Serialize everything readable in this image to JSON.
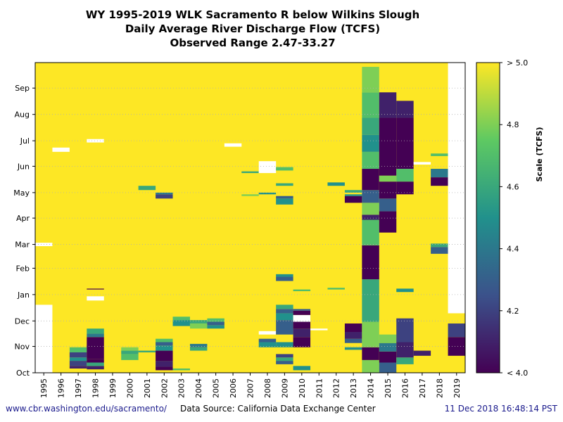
{
  "titles": {
    "line1": "WY 1995-2019 WLK Sacramento R below Wilkins Slough",
    "line2": "Daily Average River Discharge Flow (TCFS)",
    "line3": "Observed Range 2.47-33.27"
  },
  "footer": {
    "url": "www.cbr.washington.edu/sacramento/",
    "source": "Data Source: California Data Exchange Center",
    "timestamp": "11 Dec 2018 16:48:14 PST"
  },
  "chart_data": {
    "type": "heatmap",
    "title": "WY 1995-2019 WLK Sacramento R below Wilkins Slough",
    "years": [
      1995,
      1996,
      1997,
      1998,
      1999,
      2000,
      2001,
      2002,
      2003,
      2004,
      2005,
      2006,
      2007,
      2008,
      2009,
      2010,
      2011,
      2012,
      2013,
      2014,
      2015,
      2016,
      2017,
      2018,
      2019
    ],
    "months": [
      "Oct",
      "Nov",
      "Dec",
      "Jan",
      "Feb",
      "Mar",
      "Apr",
      "May",
      "Jun",
      "Jul",
      "Aug",
      "Sep"
    ],
    "colorbar": {
      "label": "Scale (TCFS)",
      "min": 4.0,
      "max": 5.0,
      "ticks": [
        {
          "value": 5.0,
          "label": "> 5.0"
        },
        {
          "value": 4.8,
          "label": "4.8"
        },
        {
          "value": 4.6,
          "label": "4.6"
        },
        {
          "value": 4.4,
          "label": "4.4"
        },
        {
          "value": 4.2,
          "label": "4.2"
        },
        {
          "value": 4.0,
          "label": "< 4.0"
        }
      ],
      "colors": [
        "#440154",
        "#3b528b",
        "#21918c",
        "#5ec962",
        "#fde725"
      ]
    },
    "background_value": 5.0,
    "segments": [
      {
        "year": 1995,
        "start": 0,
        "end": 80,
        "value": null
      },
      {
        "year": 1995,
        "start": 149,
        "end": 153,
        "value": null
      },
      {
        "year": 1996,
        "start": 260,
        "end": 265,
        "value": null
      },
      {
        "year": 1997,
        "start": 5,
        "end": 8,
        "value": 4.1
      },
      {
        "year": 1997,
        "start": 8,
        "end": 14,
        "value": 4.2
      },
      {
        "year": 1997,
        "start": 14,
        "end": 18,
        "value": 4.5
      },
      {
        "year": 1997,
        "start": 18,
        "end": 24,
        "value": 4.2
      },
      {
        "year": 1997,
        "start": 24,
        "end": 30,
        "value": 4.7
      },
      {
        "year": 1998,
        "start": 4,
        "end": 8,
        "value": 4.1
      },
      {
        "year": 1998,
        "start": 8,
        "end": 12,
        "value": 4.6
      },
      {
        "year": 1998,
        "start": 12,
        "end": 16,
        "value": 4.0
      },
      {
        "year": 1998,
        "start": 16,
        "end": 42,
        "value": 4.0
      },
      {
        "year": 1998,
        "start": 42,
        "end": 46,
        "value": 4.4
      },
      {
        "year": 1998,
        "start": 46,
        "end": 52,
        "value": 4.6
      },
      {
        "year": 1998,
        "start": 85,
        "end": 90,
        "value": null
      },
      {
        "year": 1998,
        "start": 98,
        "end": 99,
        "value": 4.0
      },
      {
        "year": 1998,
        "start": 271,
        "end": 275,
        "value": null
      },
      {
        "year": 2000,
        "start": 15,
        "end": 22,
        "value": 4.7
      },
      {
        "year": 2000,
        "start": 22,
        "end": 26,
        "value": 4.6
      },
      {
        "year": 2000,
        "start": 26,
        "end": 30,
        "value": 4.8
      },
      {
        "year": 2001,
        "start": 24,
        "end": 26,
        "value": 4.6
      },
      {
        "year": 2001,
        "start": 215,
        "end": 220,
        "value": 4.6
      },
      {
        "year": 2002,
        "start": 3,
        "end": 7,
        "value": 4.0
      },
      {
        "year": 2002,
        "start": 7,
        "end": 14,
        "value": 4.1
      },
      {
        "year": 2002,
        "start": 14,
        "end": 26,
        "value": 4.0
      },
      {
        "year": 2002,
        "start": 26,
        "end": 32,
        "value": 4.5
      },
      {
        "year": 2002,
        "start": 32,
        "end": 36,
        "value": 4.3
      },
      {
        "year": 2002,
        "start": 36,
        "end": 40,
        "value": 4.7
      },
      {
        "year": 2002,
        "start": 205,
        "end": 210,
        "value": 4.2
      },
      {
        "year": 2002,
        "start": 210,
        "end": 212,
        "value": 4.4
      },
      {
        "year": 2003,
        "start": 3,
        "end": 5,
        "value": 4.7
      },
      {
        "year": 2003,
        "start": 55,
        "end": 62,
        "value": 4.5
      },
      {
        "year": 2003,
        "start": 62,
        "end": 66,
        "value": 4.7
      },
      {
        "year": 2004,
        "start": 26,
        "end": 30,
        "value": 4.6
      },
      {
        "year": 2004,
        "start": 30,
        "end": 34,
        "value": 4.4
      },
      {
        "year": 2004,
        "start": 52,
        "end": 58,
        "value": 4.8
      },
      {
        "year": 2004,
        "start": 58,
        "end": 62,
        "value": 4.6
      },
      {
        "year": 2005,
        "start": 52,
        "end": 56,
        "value": 4.5
      },
      {
        "year": 2005,
        "start": 56,
        "end": 60,
        "value": 4.3
      },
      {
        "year": 2005,
        "start": 60,
        "end": 64,
        "value": 4.7
      },
      {
        "year": 2006,
        "start": 266,
        "end": 270,
        "value": null
      },
      {
        "year": 2007,
        "start": 235,
        "end": 237,
        "value": 4.6
      },
      {
        "year": 2007,
        "start": 208,
        "end": 210,
        "value": 4.8
      },
      {
        "year": 2008,
        "start": 30,
        "end": 36,
        "value": 4.5
      },
      {
        "year": 2008,
        "start": 36,
        "end": 40,
        "value": 4.3
      },
      {
        "year": 2008,
        "start": 45,
        "end": 49,
        "value": null
      },
      {
        "year": 2008,
        "start": 210,
        "end": 212,
        "value": 4.5
      },
      {
        "year": 2008,
        "start": 235,
        "end": 249,
        "value": null
      },
      {
        "year": 2009,
        "start": 10,
        "end": 14,
        "value": 4.3
      },
      {
        "year": 2009,
        "start": 14,
        "end": 18,
        "value": 4.6
      },
      {
        "year": 2009,
        "start": 18,
        "end": 22,
        "value": 4.2
      },
      {
        "year": 2009,
        "start": 30,
        "end": 36,
        "value": 4.5
      },
      {
        "year": 2009,
        "start": 45,
        "end": 62,
        "value": 4.3
      },
      {
        "year": 2009,
        "start": 62,
        "end": 70,
        "value": 4.5
      },
      {
        "year": 2009,
        "start": 70,
        "end": 75,
        "value": 4.3
      },
      {
        "year": 2009,
        "start": 75,
        "end": 80,
        "value": 4.6
      },
      {
        "year": 2009,
        "start": 108,
        "end": 113,
        "value": 4.3
      },
      {
        "year": 2009,
        "start": 113,
        "end": 116,
        "value": 4.5
      },
      {
        "year": 2009,
        "start": 198,
        "end": 205,
        "value": 4.5
      },
      {
        "year": 2009,
        "start": 205,
        "end": 208,
        "value": 4.3
      },
      {
        "year": 2009,
        "start": 220,
        "end": 223,
        "value": 4.6
      },
      {
        "year": 2009,
        "start": 238,
        "end": 242,
        "value": 4.7
      },
      {
        "year": 2010,
        "start": 3,
        "end": 8,
        "value": 4.5
      },
      {
        "year": 2010,
        "start": 30,
        "end": 42,
        "value": 4.0
      },
      {
        "year": 2010,
        "start": 42,
        "end": 52,
        "value": 4.1
      },
      {
        "year": 2010,
        "start": 52,
        "end": 60,
        "value": 4.0
      },
      {
        "year": 2010,
        "start": 60,
        "end": 68,
        "value": null
      },
      {
        "year": 2010,
        "start": 68,
        "end": 73,
        "value": 4.0
      },
      {
        "year": 2010,
        "start": 73,
        "end": 75,
        "value": 4.3
      },
      {
        "year": 2010,
        "start": 96,
        "end": 98,
        "value": 4.7
      },
      {
        "year": 2011,
        "start": 50,
        "end": 52,
        "value": null
      },
      {
        "year": 2012,
        "start": 98,
        "end": 100,
        "value": 4.7
      },
      {
        "year": 2012,
        "start": 220,
        "end": 224,
        "value": 4.5
      },
      {
        "year": 2013,
        "start": 27,
        "end": 30,
        "value": 4.5
      },
      {
        "year": 2013,
        "start": 35,
        "end": 40,
        "value": 4.3
      },
      {
        "year": 2013,
        "start": 40,
        "end": 48,
        "value": 4.1
      },
      {
        "year": 2013,
        "start": 48,
        "end": 58,
        "value": 4.0
      },
      {
        "year": 2013,
        "start": 200,
        "end": 208,
        "value": 4.0
      },
      {
        "year": 2013,
        "start": 208,
        "end": 210,
        "value": 4.5
      },
      {
        "year": 2013,
        "start": 212,
        "end": 215,
        "value": 4.6
      },
      {
        "year": 2014,
        "start": 0,
        "end": 15,
        "value": 4.8
      },
      {
        "year": 2014,
        "start": 15,
        "end": 30,
        "value": 4.0
      },
      {
        "year": 2014,
        "start": 30,
        "end": 60,
        "value": 4.8
      },
      {
        "year": 2014,
        "start": 60,
        "end": 110,
        "value": 4.6
      },
      {
        "year": 2014,
        "start": 110,
        "end": 150,
        "value": 4.0
      },
      {
        "year": 2014,
        "start": 150,
        "end": 180,
        "value": 4.7
      },
      {
        "year": 2014,
        "start": 180,
        "end": 186,
        "value": 4.1
      },
      {
        "year": 2014,
        "start": 186,
        "end": 200,
        "value": 4.8
      },
      {
        "year": 2014,
        "start": 200,
        "end": 215,
        "value": 4.3
      },
      {
        "year": 2014,
        "start": 215,
        "end": 240,
        "value": 4.0
      },
      {
        "year": 2014,
        "start": 240,
        "end": 260,
        "value": 4.7
      },
      {
        "year": 2014,
        "start": 260,
        "end": 280,
        "value": 4.5
      },
      {
        "year": 2014,
        "start": 280,
        "end": 300,
        "value": 4.6
      },
      {
        "year": 2014,
        "start": 300,
        "end": 330,
        "value": 4.7
      },
      {
        "year": 2014,
        "start": 330,
        "end": 360,
        "value": 4.8
      },
      {
        "year": 2015,
        "start": 0,
        "end": 12,
        "value": 4.3
      },
      {
        "year": 2015,
        "start": 12,
        "end": 25,
        "value": 4.0
      },
      {
        "year": 2015,
        "start": 25,
        "end": 35,
        "value": 4.4
      },
      {
        "year": 2015,
        "start": 35,
        "end": 45,
        "value": 4.8
      },
      {
        "year": 2015,
        "start": 165,
        "end": 190,
        "value": 4.0
      },
      {
        "year": 2015,
        "start": 190,
        "end": 205,
        "value": 4.3
      },
      {
        "year": 2015,
        "start": 205,
        "end": 225,
        "value": 4.0
      },
      {
        "year": 2015,
        "start": 225,
        "end": 232,
        "value": 4.8
      },
      {
        "year": 2015,
        "start": 232,
        "end": 300,
        "value": 4.0
      },
      {
        "year": 2015,
        "start": 300,
        "end": 330,
        "value": 4.1
      },
      {
        "year": 2016,
        "start": 10,
        "end": 18,
        "value": 4.6
      },
      {
        "year": 2016,
        "start": 18,
        "end": 36,
        "value": 4.1
      },
      {
        "year": 2016,
        "start": 36,
        "end": 64,
        "value": 4.2
      },
      {
        "year": 2016,
        "start": 95,
        "end": 99,
        "value": 4.5
      },
      {
        "year": 2016,
        "start": 210,
        "end": 225,
        "value": 4.0
      },
      {
        "year": 2016,
        "start": 225,
        "end": 240,
        "value": 4.7
      },
      {
        "year": 2016,
        "start": 240,
        "end": 300,
        "value": 4.0
      },
      {
        "year": 2016,
        "start": 300,
        "end": 320,
        "value": 4.1
      },
      {
        "year": 2017,
        "start": 20,
        "end": 26,
        "value": 4.1
      },
      {
        "year": 2017,
        "start": 245,
        "end": 248,
        "value": null
      },
      {
        "year": 2018,
        "start": 140,
        "end": 148,
        "value": 4.3
      },
      {
        "year": 2018,
        "start": 148,
        "end": 152,
        "value": 4.6
      },
      {
        "year": 2018,
        "start": 220,
        "end": 230,
        "value": 4.0
      },
      {
        "year": 2018,
        "start": 230,
        "end": 240,
        "value": 4.4
      },
      {
        "year": 2018,
        "start": 255,
        "end": 258,
        "value": 4.7
      },
      {
        "year": 2019,
        "start": 0,
        "end": 20,
        "value": 5.0
      },
      {
        "year": 2019,
        "start": 20,
        "end": 42,
        "value": 4.0
      },
      {
        "year": 2019,
        "start": 42,
        "end": 58,
        "value": 4.2
      },
      {
        "year": 2019,
        "start": 70,
        "end": 365,
        "value": null
      }
    ]
  }
}
